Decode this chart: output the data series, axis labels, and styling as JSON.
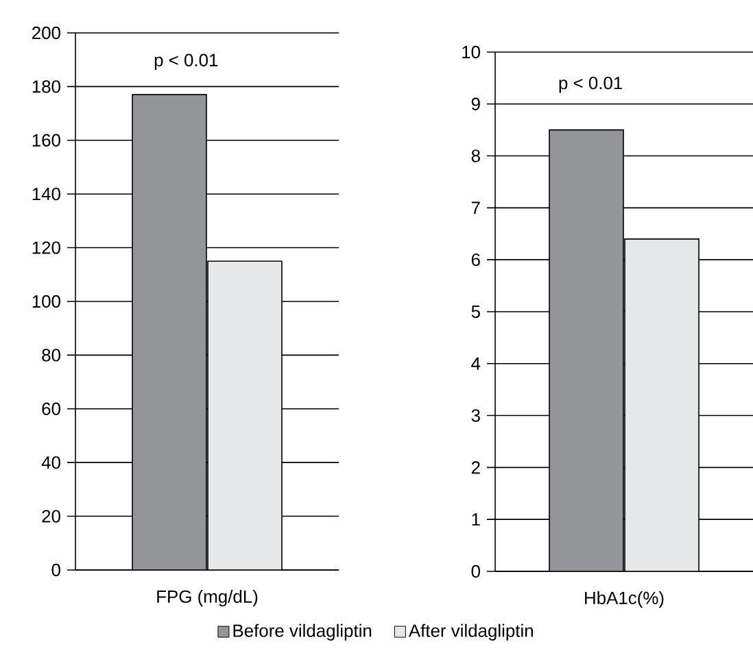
{
  "chart_data": [
    {
      "type": "bar",
      "categories": [
        "FPG (mg/dL)"
      ],
      "series": [
        {
          "name": "Before vildagliptin",
          "color": "#939598",
          "values": [
            177
          ]
        },
        {
          "name": "After vildagliptin",
          "color": "#e6e7e8",
          "values": [
            115
          ]
        }
      ],
      "ylim": [
        0,
        200
      ],
      "yticks": [
        0,
        20,
        40,
        60,
        80,
        100,
        120,
        140,
        160,
        180,
        200
      ],
      "grid": "y",
      "legend": "bottom",
      "annotations": [
        "p < 0.01"
      ]
    },
    {
      "type": "bar",
      "categories": [
        "HbA1c(%)"
      ],
      "series": [
        {
          "color": "#939598",
          "values": [
            8.5
          ]
        },
        {
          "color": "#e6e7e8",
          "values": [
            6.4
          ]
        }
      ],
      "ylim": [
        0,
        10
      ],
      "yticks": [
        0,
        1,
        2,
        3,
        4,
        5,
        6,
        7,
        8,
        9,
        10
      ],
      "grid": "y",
      "annotations": [
        "p < 0.01"
      ]
    }
  ]
}
